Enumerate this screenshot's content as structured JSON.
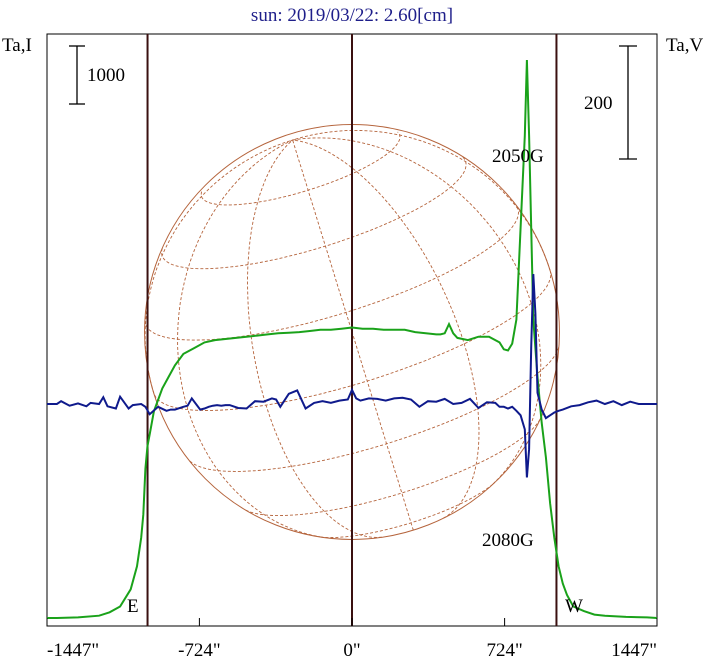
{
  "chart_data": {
    "type": "line",
    "title": "sun: 2019/03/22: 2.60[cm]",
    "left_axis_label": "Ta,I",
    "right_axis_label": "Ta,V",
    "x_unit": "arcsec",
    "xlim": [
      -1447,
      1447
    ],
    "x_ticks": [
      -1447,
      -724,
      0,
      724,
      1447
    ],
    "x_tick_labels": [
      "-1447\"",
      "-724\"",
      "0\"",
      "724\"",
      "1447\""
    ],
    "limb_markers": [
      {
        "label": "E",
        "x": -970
      },
      {
        "label": "W",
        "x": 970
      }
    ],
    "scale_bars": [
      {
        "axis": "left",
        "label": "1000"
      },
      {
        "axis": "right",
        "label": "200"
      }
    ],
    "annotations": [
      "2050G",
      "2080G"
    ],
    "colors": {
      "intensity": "#1aa21a",
      "polarization": "#0f1a8c",
      "grid": "#b5643c",
      "limb_line": "#3a1010",
      "title": "#1f1f8a"
    },
    "series": [
      {
        "key": "intensity",
        "x": [
          -1447,
          -1400,
          -1300,
          -1200,
          -1150,
          -1100,
          -1050,
          -1020,
          -1000,
          -990,
          -980,
          -970,
          -960,
          -950,
          -940,
          -920,
          -900,
          -870,
          -840,
          -800,
          -750,
          -700,
          -650,
          -600,
          -550,
          -500,
          -450,
          -400,
          -350,
          -300,
          -250,
          -200,
          -150,
          -100,
          -50,
          0,
          50,
          100,
          150,
          200,
          250,
          300,
          350,
          400,
          420,
          440,
          460,
          480,
          500,
          550,
          600,
          650,
          700,
          720,
          740,
          760,
          780,
          800,
          820,
          830,
          840,
          850,
          860,
          880,
          900,
          920,
          940,
          960,
          980,
          1000,
          1020,
          1050,
          1100,
          1150,
          1200,
          1300,
          1400,
          1447
        ],
        "y": [
          0,
          0,
          5,
          20,
          50,
          100,
          250,
          450,
          700,
          900,
          1300,
          1500,
          1600,
          1700,
          1800,
          1900,
          2000,
          2100,
          2200,
          2300,
          2350,
          2400,
          2420,
          2430,
          2440,
          2450,
          2460,
          2470,
          2480,
          2485,
          2490,
          2500,
          2510,
          2510,
          2520,
          2530,
          2520,
          2520,
          2510,
          2510,
          2510,
          2490,
          2480,
          2470,
          2470,
          2480,
          2560,
          2480,
          2440,
          2420,
          2450,
          2450,
          2400,
          2340,
          2330,
          2390,
          2600,
          3400,
          4200,
          4860,
          4200,
          3400,
          2600,
          2100,
          1700,
          1400,
          1000,
          700,
          450,
          300,
          200,
          100,
          60,
          30,
          20,
          10,
          5,
          0
        ]
      },
      {
        "key": "polarization",
        "x": [
          -1447,
          -1400,
          -1380,
          -1340,
          -1300,
          -1260,
          -1240,
          -1200,
          -1180,
          -1160,
          -1120,
          -1100,
          -1060,
          -1040,
          -1000,
          -980,
          -960,
          -920,
          -880,
          -860,
          -840,
          -800,
          -780,
          -760,
          -720,
          -700,
          -680,
          -660,
          -640,
          -620,
          -600,
          -580,
          -540,
          -500,
          -460,
          -420,
          -380,
          -360,
          -340,
          -300,
          -260,
          -220,
          -180,
          -140,
          -100,
          -60,
          -20,
          0,
          20,
          40,
          80,
          120,
          160,
          200,
          240,
          280,
          320,
          360,
          400,
          440,
          480,
          520,
          560,
          600,
          640,
          680,
          700,
          720,
          740,
          760,
          780,
          800,
          820,
          830,
          840,
          850,
          860,
          870,
          880,
          900,
          920,
          940,
          960,
          980,
          1000,
          1040,
          1080,
          1120,
          1160,
          1200,
          1240,
          1280,
          1320,
          1360,
          1400,
          1447
        ],
        "y": [
          0,
          0,
          5,
          -3,
          1,
          -4,
          2,
          0,
          12,
          -4,
          -8,
          13,
          -8,
          -2,
          0,
          -5,
          -18,
          -5,
          -12,
          -10,
          -10,
          -5,
          -3,
          10,
          -10,
          -8,
          -5,
          -3,
          -2,
          -3,
          -2,
          -2,
          -7,
          -8,
          5,
          4,
          10,
          8,
          -5,
          18,
          24,
          -8,
          2,
          5,
          2,
          6,
          8,
          25,
          10,
          6,
          10,
          9,
          6,
          10,
          11,
          8,
          -5,
          5,
          4,
          9,
          0,
          2,
          9,
          -7,
          3,
          2,
          -5,
          -5,
          -8,
          -5,
          -12,
          -20,
          -45,
          -130,
          -80,
          100,
          230,
          160,
          20,
          -10,
          -25,
          -20,
          -15,
          -12,
          -10,
          -4,
          -2,
          3,
          6,
          0,
          5,
          -2,
          4,
          0,
          0,
          0
        ]
      }
    ],
    "coordinate_grid": {
      "type": "heliographic",
      "meridians": 7,
      "parallels": 7
    }
  }
}
